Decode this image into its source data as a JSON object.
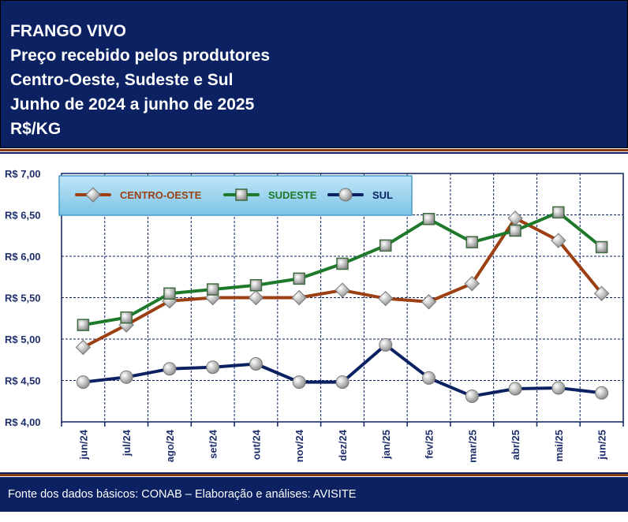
{
  "header": {
    "lines": [
      "FRANGO VIVO",
      "Preço recebido pelos produtores",
      "Centro-Oeste, Sudeste e Sul",
      "Junho de 2024 a junho de 2025",
      "R$/KG"
    ]
  },
  "footer": {
    "text": "Fonte dos dados básicos: CONAB – Elaboração e análises: AVISITE"
  },
  "chart_data": {
    "type": "line",
    "title": "FRANGO VIVO – Preço recebido pelos produtores – Centro-Oeste, Sudeste e Sul – Junho de 2024 a junho de 2025 – R$/KG",
    "categories": [
      "jun/24",
      "jul/24",
      "ago/24",
      "set/24",
      "out/24",
      "nov/24",
      "dez/24",
      "jan/25",
      "fev/25",
      "mar/25",
      "abr/25",
      "mai/25",
      "jun/25"
    ],
    "ylim": [
      4.0,
      7.0
    ],
    "yticks": [
      "R$ 4,00",
      "R$ 4,50",
      "R$ 5,00",
      "R$ 5,50",
      "R$ 6,00",
      "R$ 6,50",
      "R$ 7,00"
    ],
    "ytick_values": [
      4.0,
      4.5,
      5.0,
      5.5,
      6.0,
      6.5,
      7.0
    ],
    "grid": true,
    "legend_position": "top-left",
    "series": [
      {
        "name": "CENTRO-OESTE",
        "color": "#9c3f12",
        "marker": "diamond",
        "values": [
          4.9,
          5.17,
          5.46,
          5.5,
          5.5,
          5.5,
          5.59,
          5.49,
          5.45,
          5.67,
          6.46,
          6.19,
          5.55
        ]
      },
      {
        "name": "SUDESTE",
        "color": "#1e7a2a",
        "marker": "square",
        "values": [
          5.17,
          5.26,
          5.55,
          5.6,
          5.65,
          5.73,
          5.91,
          6.13,
          6.45,
          6.17,
          6.31,
          6.53,
          6.11
        ]
      },
      {
        "name": "SUL",
        "color": "#0b2161",
        "marker": "circle",
        "values": [
          4.48,
          4.54,
          4.64,
          4.66,
          4.7,
          4.48,
          4.48,
          4.93,
          4.53,
          4.31,
          4.4,
          4.41,
          4.35
        ]
      }
    ]
  }
}
